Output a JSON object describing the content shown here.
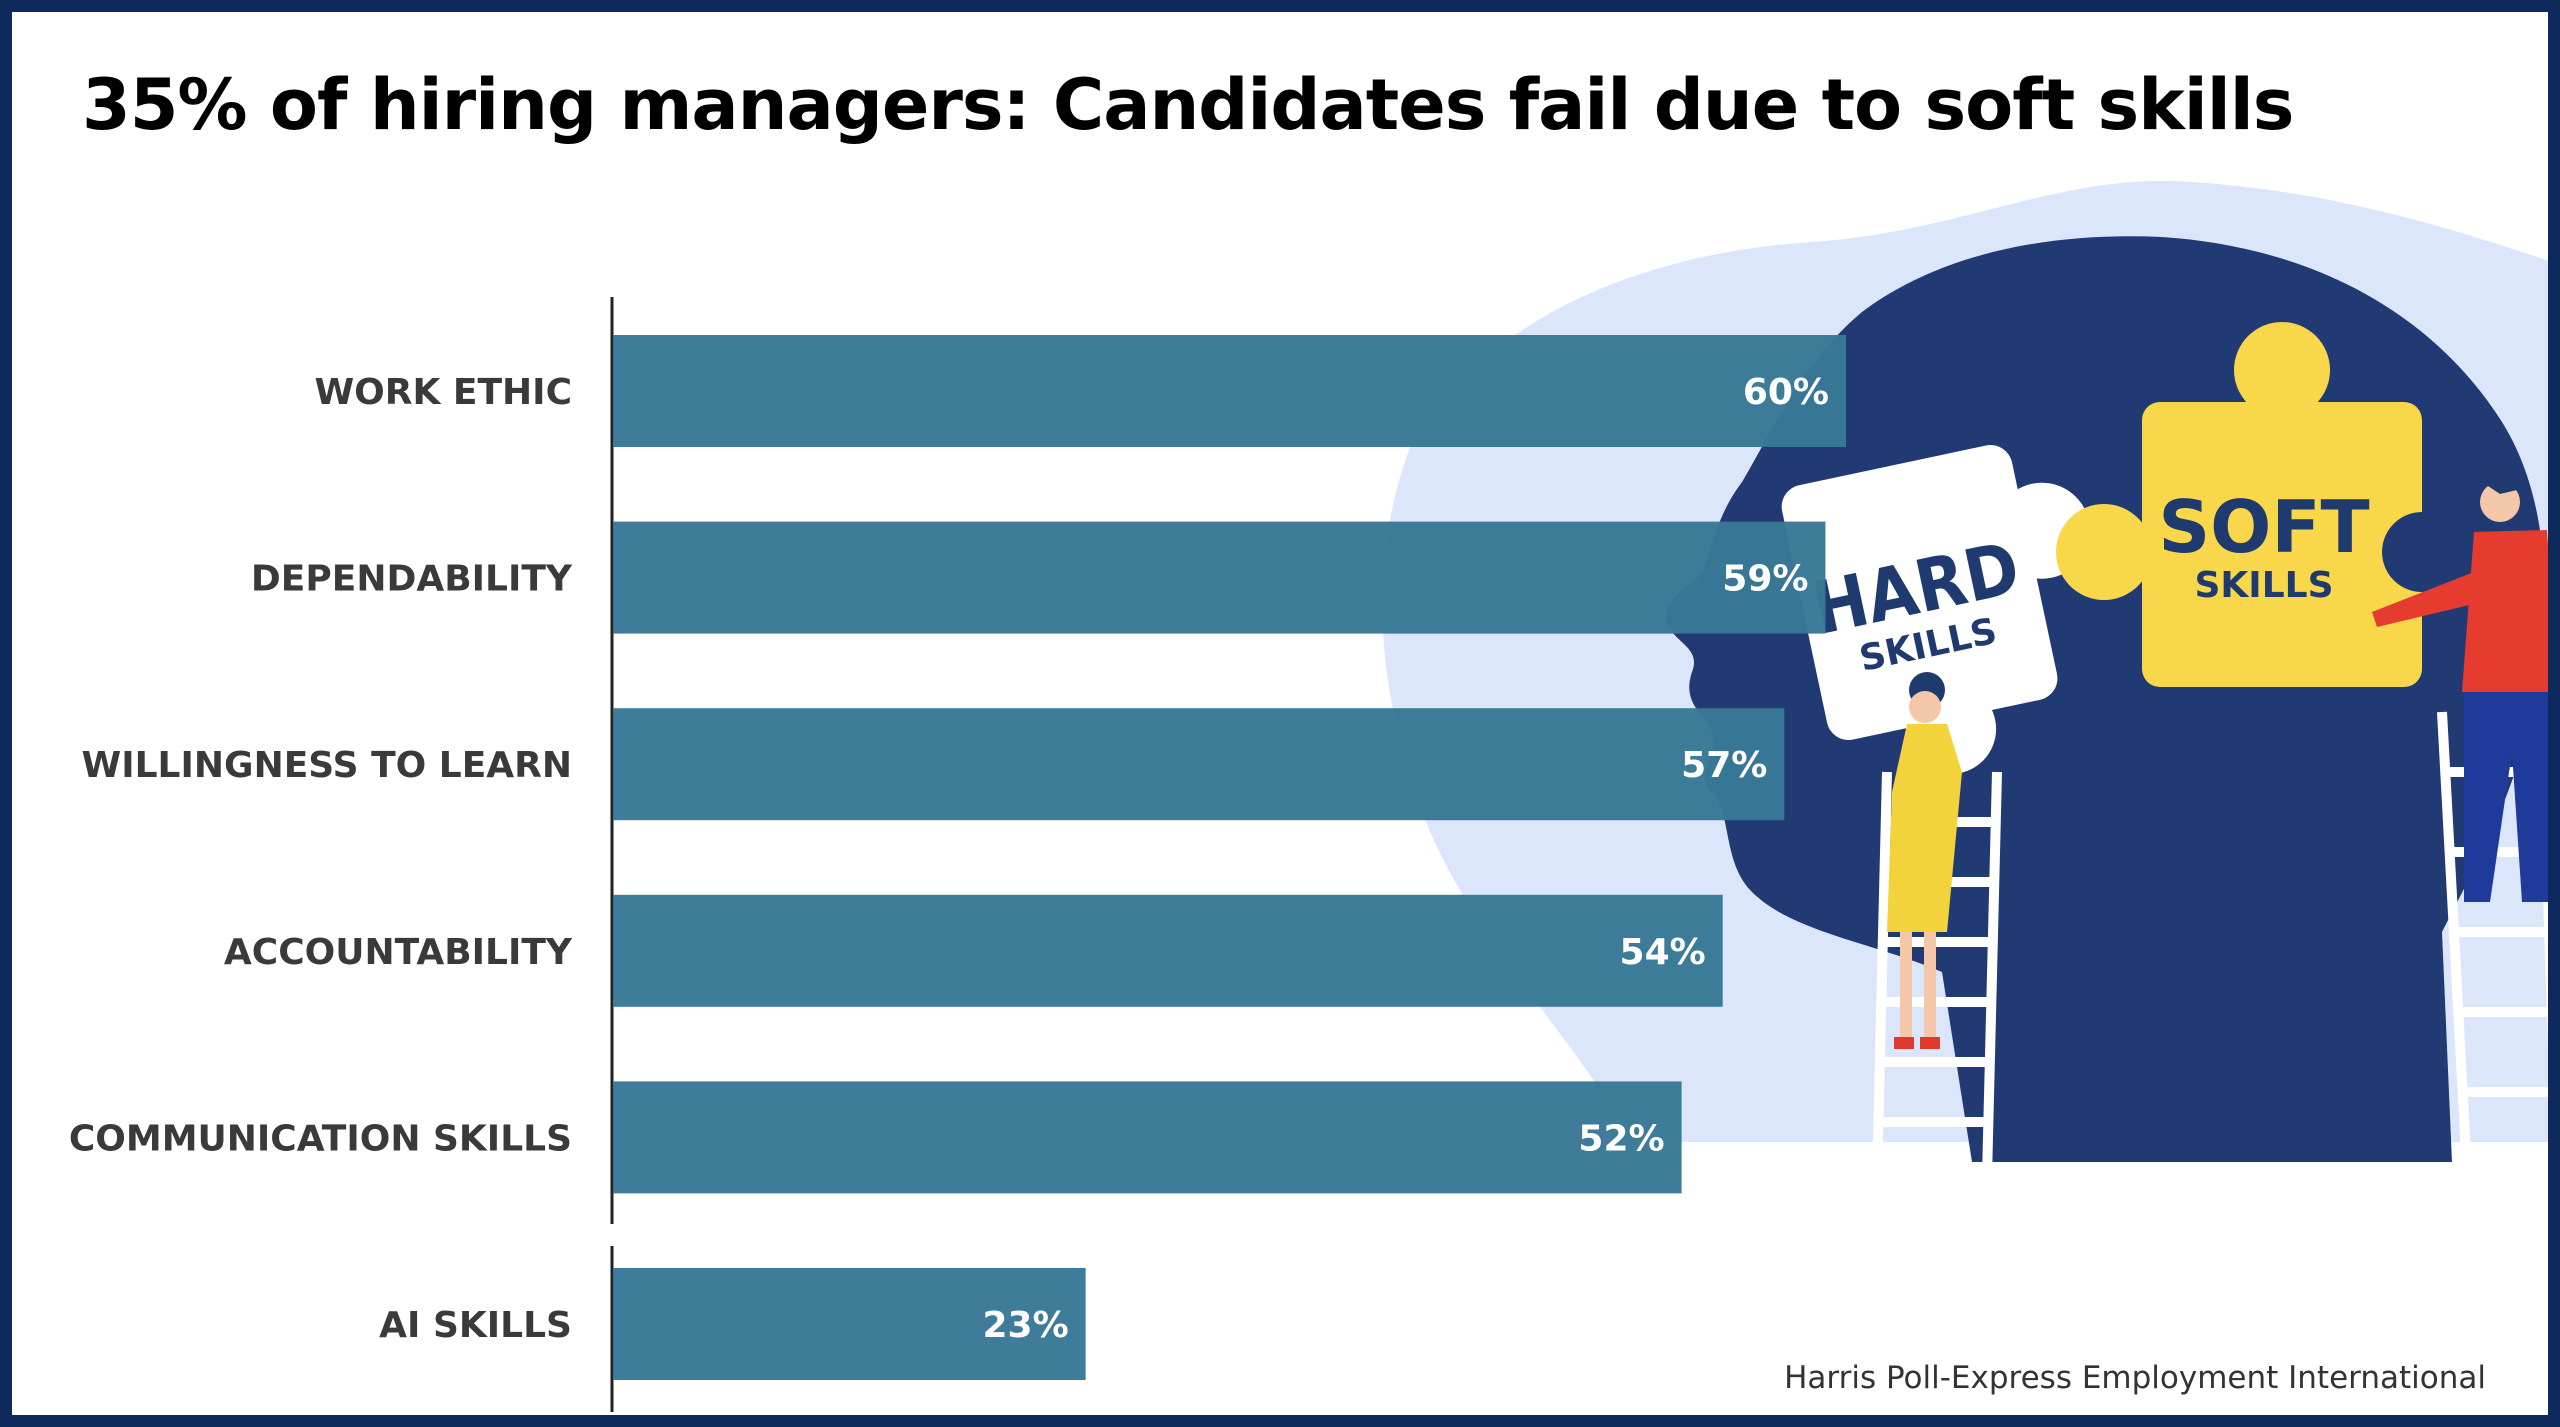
{
  "title": "35% of hiring managers: Candidates fail due to soft skills",
  "source": "Harris Poll-Express Employment International",
  "illustration": {
    "hard_puzzle_line1": "HARD",
    "hard_puzzle_line2": "SKILLS",
    "soft_puzzle_line1": "SOFT",
    "soft_puzzle_line2": "SKILLS"
  },
  "colors": {
    "bar": "#387896",
    "frame": "#0e2a5c",
    "head": "#223a74",
    "blob": "#dce6fb",
    "soft_puzzle": "#f8d84a",
    "label_text": "#3a3a3a"
  },
  "chart_data": {
    "type": "bar",
    "orientation": "horizontal",
    "categories": [
      "WORK ETHIC",
      "DEPENDABILITY",
      "WILLINGNESS TO LEARN",
      "ACCOUNTABILITY",
      "COMMUNICATION SKILLS",
      "AI SKILLS"
    ],
    "values": [
      60,
      59,
      57,
      54,
      52,
      23
    ],
    "value_labels": [
      "60%",
      "59%",
      "57%",
      "54%",
      "52%",
      "23%"
    ],
    "unit": "%",
    "xlim": [
      0,
      100
    ],
    "grid": false,
    "legend": "none"
  }
}
